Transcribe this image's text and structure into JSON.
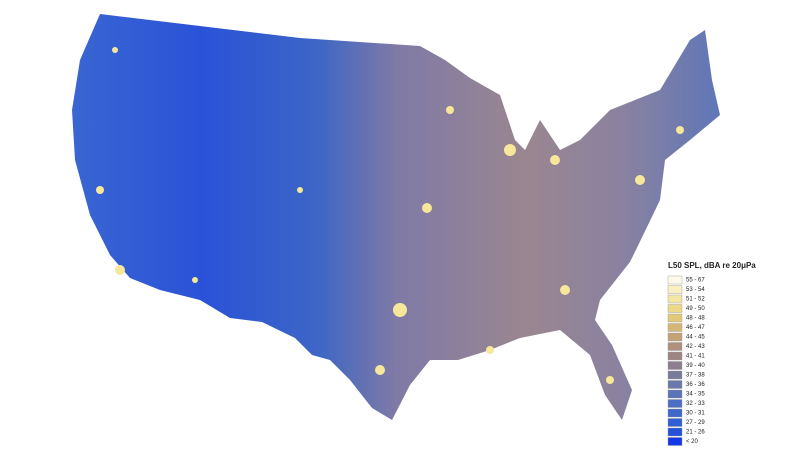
{
  "legend": {
    "title": "L50 SPL, dBA re 20μPa",
    "entries": [
      {
        "label": "55 - 67",
        "color": "#fdfbe8"
      },
      {
        "label": "53 - 54",
        "color": "#f8f0c0"
      },
      {
        "label": "51 - 52",
        "color": "#f3e6a4"
      },
      {
        "label": "49 - 50",
        "color": "#ecd98a"
      },
      {
        "label": "48 - 48",
        "color": "#e2c97a"
      },
      {
        "label": "46 - 47",
        "color": "#d4b676"
      },
      {
        "label": "44 - 45",
        "color": "#c3a277"
      },
      {
        "label": "42 - 43",
        "color": "#b08f7c"
      },
      {
        "label": "41 - 41",
        "color": "#9e8584"
      },
      {
        "label": "39 - 40",
        "color": "#8c7e8e"
      },
      {
        "label": "37 - 38",
        "color": "#7a7a9a"
      },
      {
        "label": "36 - 36",
        "color": "#6a78aa"
      },
      {
        "label": "34 - 35",
        "color": "#5b74b8"
      },
      {
        "label": "32 - 33",
        "color": "#4c6ec4"
      },
      {
        "label": "30 - 31",
        "color": "#3f67cc"
      },
      {
        "label": "27 - 29",
        "color": "#325ed4"
      },
      {
        "label": "21 - 26",
        "color": "#2450dc"
      },
      {
        "label": "< 20",
        "color": "#1438e6"
      }
    ]
  }
}
